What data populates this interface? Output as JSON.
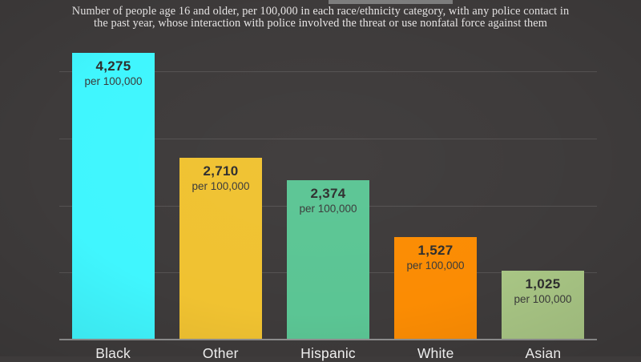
{
  "title": {
    "line1": "Number of people age 16 and older, per 100,000 in each race/ethnicity category, with any police contact in",
    "line2": "the past year, whose interaction with police involved the threat or use nonfatal force against them"
  },
  "value_suffix": "per 100,000",
  "colors": {
    "background": "#3e3b3b",
    "gridline": "#555252",
    "baseline": "#8f8f8f",
    "top_strip": "#7e7e7e",
    "title_text": "#e8e6e6",
    "category_text": "#f7f7f7",
    "bar_number_text": "#2e2e2e",
    "bar_suffix_text": "#3a3a3a"
  },
  "chart_data": {
    "type": "bar",
    "title": "Number of people age 16 and older, per 100,000 in each race/ethnicity category, with any police contact in the past year, whose interaction with police involved the threat or use nonfatal force against them",
    "categories": [
      "Black",
      "Other",
      "Hispanic",
      "White",
      "Asian"
    ],
    "values": [
      4275,
      2710,
      2374,
      1527,
      1025
    ],
    "value_labels": [
      "4,275",
      "2,710",
      "2,374",
      "1,527",
      "1,025"
    ],
    "bar_colors": [
      "#40F6FE",
      "#F0C231",
      "#5BC594",
      "#FB8C03",
      "#A8C584"
    ],
    "xlabel": "",
    "ylabel": "",
    "ylim": [
      0,
      4400
    ],
    "gridline_values": [
      1000,
      2000,
      3000,
      4000
    ],
    "grid": "horizontal",
    "legend": "none"
  }
}
